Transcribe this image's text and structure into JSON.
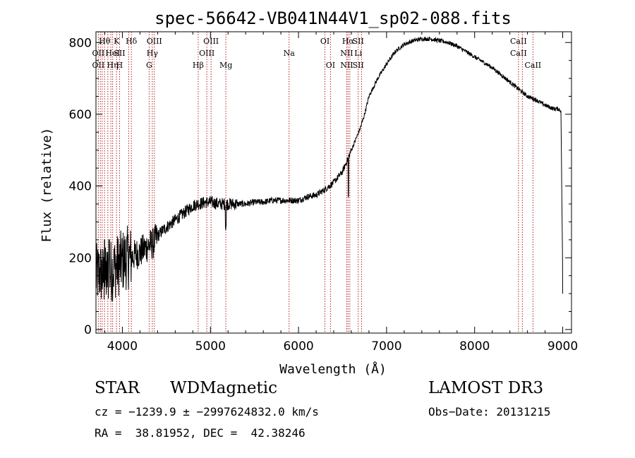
{
  "chart_data": {
    "type": "line",
    "title": "spec-56642-VB041N44V1_sp02-088.fits",
    "xlabel": "Wavelength (Å)",
    "ylabel": "Flux (relative)",
    "xlim": [
      3700,
      9100
    ],
    "ylim": [
      -10,
      830
    ],
    "xticks": [
      4000,
      5000,
      6000,
      7000,
      8000,
      9000
    ],
    "yticks": [
      0,
      200,
      400,
      600,
      800
    ],
    "grid": false,
    "series": [
      {
        "name": "flux",
        "anchors": [
          [
            3700,
            150
          ],
          [
            3750,
            160
          ],
          [
            3800,
            140
          ],
          [
            3850,
            160
          ],
          [
            3900,
            170
          ],
          [
            3950,
            180
          ],
          [
            4000,
            190
          ],
          [
            4050,
            200
          ],
          [
            4100,
            200
          ],
          [
            4150,
            210
          ],
          [
            4200,
            215
          ],
          [
            4250,
            225
          ],
          [
            4300,
            235
          ],
          [
            4350,
            240
          ],
          [
            4400,
            260
          ],
          [
            4450,
            275
          ],
          [
            4500,
            285
          ],
          [
            4550,
            295
          ],
          [
            4600,
            305
          ],
          [
            4650,
            315
          ],
          [
            4700,
            325
          ],
          [
            4750,
            335
          ],
          [
            4800,
            345
          ],
          [
            4850,
            350
          ],
          [
            4900,
            352
          ],
          [
            4950,
            355
          ],
          [
            5000,
            355
          ],
          [
            5100,
            350
          ],
          [
            5200,
            350
          ],
          [
            5300,
            350
          ],
          [
            5400,
            350
          ],
          [
            5500,
            355
          ],
          [
            5600,
            355
          ],
          [
            5700,
            360
          ],
          [
            5800,
            360
          ],
          [
            5900,
            360
          ],
          [
            6000,
            360
          ],
          [
            6100,
            370
          ],
          [
            6200,
            375
          ],
          [
            6300,
            390
          ],
          [
            6400,
            410
          ],
          [
            6500,
            440
          ],
          [
            6550,
            470
          ],
          [
            6600,
            500
          ],
          [
            6650,
            530
          ],
          [
            6700,
            560
          ],
          [
            6750,
            600
          ],
          [
            6800,
            650
          ],
          [
            6900,
            700
          ],
          [
            7000,
            740
          ],
          [
            7100,
            775
          ],
          [
            7200,
            795
          ],
          [
            7300,
            805
          ],
          [
            7400,
            810
          ],
          [
            7500,
            810
          ],
          [
            7600,
            805
          ],
          [
            7700,
            800
          ],
          [
            7800,
            790
          ],
          [
            7900,
            775
          ],
          [
            8000,
            760
          ],
          [
            8100,
            745
          ],
          [
            8200,
            730
          ],
          [
            8300,
            710
          ],
          [
            8400,
            690
          ],
          [
            8500,
            670
          ],
          [
            8600,
            650
          ],
          [
            8700,
            640
          ],
          [
            8800,
            625
          ],
          [
            8900,
            615
          ],
          [
            8950,
            615
          ],
          [
            8980,
            610
          ],
          [
            9000,
            150
          ]
        ]
      }
    ],
    "lines": [
      {
        "w": 3727,
        "labels": [
          "",
          "OII",
          "OII"
        ]
      },
      {
        "w": 3750,
        "labels": [
          "",
          "",
          ""
        ]
      },
      {
        "w": 3771,
        "labels": [
          "",
          "",
          ""
        ]
      },
      {
        "w": 3798,
        "labels": [
          "Hθ",
          "",
          ""
        ]
      },
      {
        "w": 3835,
        "labels": [
          "",
          "",
          ""
        ]
      },
      {
        "w": 3869,
        "labels": [
          "",
          "",
          ""
        ]
      },
      {
        "w": 3889,
        "labels": [
          "",
          "HeI",
          "Hη"
        ]
      },
      {
        "w": 3934,
        "labels": [
          "K",
          "",
          ""
        ]
      },
      {
        "w": 3968,
        "labels": [
          "",
          "SII",
          "H"
        ]
      },
      {
        "w": 4072,
        "labels": [
          "",
          "",
          ""
        ]
      },
      {
        "w": 4102,
        "labels": [
          "Hδ",
          "",
          ""
        ]
      },
      {
        "w": 4304,
        "labels": [
          "",
          "",
          "G"
        ]
      },
      {
        "w": 4340,
        "labels": [
          "",
          "Hγ",
          ""
        ]
      },
      {
        "w": 4363,
        "labels": [
          "OIII",
          "",
          ""
        ]
      },
      {
        "w": 4861,
        "labels": [
          "",
          "",
          "Hβ"
        ]
      },
      {
        "w": 4959,
        "labels": [
          "",
          "OIII",
          ""
        ]
      },
      {
        "w": 5007,
        "labels": [
          "OIII",
          "",
          ""
        ]
      },
      {
        "w": 5175,
        "labels": [
          "",
          "",
          "Mg"
        ]
      },
      {
        "w": 5893,
        "labels": [
          "",
          "Na",
          ""
        ]
      },
      {
        "w": 6300,
        "labels": [
          "OI",
          "",
          ""
        ]
      },
      {
        "w": 6363,
        "labels": [
          "",
          "",
          "OI"
        ]
      },
      {
        "w": 6548,
        "labels": [
          "",
          "NII",
          "NII"
        ]
      },
      {
        "w": 6563,
        "labels": [
          "Hα",
          "",
          ""
        ]
      },
      {
        "w": 6583,
        "labels": [
          "",
          "",
          ""
        ]
      },
      {
        "w": 6678,
        "labels": [
          "SII",
          "Li",
          "SII"
        ]
      },
      {
        "w": 6716,
        "labels": [
          "",
          "",
          ""
        ]
      },
      {
        "w": 8498,
        "labels": [
          "CaII",
          "CaII",
          ""
        ]
      },
      {
        "w": 8542,
        "labels": [
          "",
          "",
          ""
        ]
      },
      {
        "w": 8662,
        "labels": [
          "",
          "",
          "CaII"
        ]
      }
    ]
  },
  "info": {
    "object_class": "STAR",
    "subclass": "WDMagnetic",
    "survey": "LAMOST DR3",
    "cz_line": "cz = −1239.9 ± −2997624832.0 km/s",
    "obs_date": "Obs−Date: 20131215",
    "radec_line": "RA =  38.81952, DEC =  42.38246"
  },
  "colors": {
    "axis": "#000000",
    "spectrum": "#000000",
    "marker": "#b22222"
  }
}
